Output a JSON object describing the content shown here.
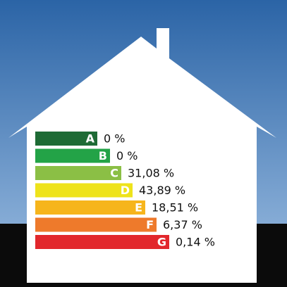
{
  "ratings": [
    {
      "letter": "A",
      "share": "0 %",
      "color": "#1e6b35"
    },
    {
      "letter": "B",
      "share": "0 %",
      "color": "#23a347"
    },
    {
      "letter": "C",
      "share": "31,08 %",
      "color": "#8bbf45"
    },
    {
      "letter": "D",
      "share": "43,89 %",
      "color": "#eee31b"
    },
    {
      "letter": "E",
      "share": "18,51 %",
      "color": "#f6b51c"
    },
    {
      "letter": "F",
      "share": "6,37 %",
      "color": "#ee7a2b"
    },
    {
      "letter": "G",
      "share": "0,14 %",
      "color": "#e2272c"
    }
  ]
}
